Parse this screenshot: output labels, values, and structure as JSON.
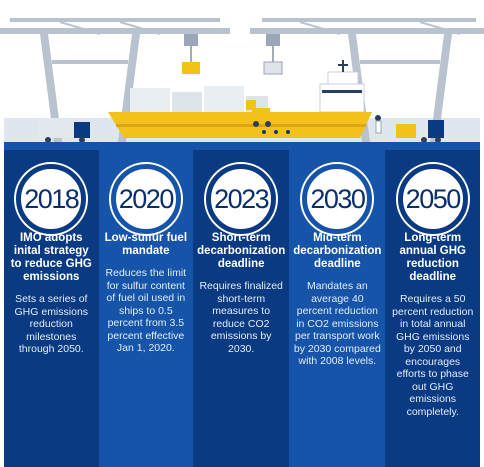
{
  "milestones": [
    {
      "year": "2018",
      "title": "IMO adopts inital strategy to reduce GHG emissions",
      "description": "Sets a series of GHG emissions reduction milestones through 2050."
    },
    {
      "year": "2020",
      "title": "Low-sulfur fuel mandate",
      "description": "Reduces the limit for sulfur content of fuel oil used in ships to 0.5 percent from 3.5 percent effective Jan 1, 2020."
    },
    {
      "year": "2023",
      "title": "Short-term decarbonization deadline",
      "description": "Requires finalized short-term measures to reduce CO2 emissions by 2030."
    },
    {
      "year": "2030",
      "title": "Mid-term decarbonization deadline",
      "description": "Mandates an average 40 percent reduction in CO2 emissions per transport work by 2030 compared with 2008 levels."
    },
    {
      "year": "2050",
      "title": "Long-term annual GHG reduction deadline",
      "description": "Requires a 50 percent reduction in total annual GHG emissions by 2050 and encourages efforts to phase out GHG emissions completely."
    }
  ],
  "colors": {
    "navy": "#0a3a82",
    "blue": "#1554a8",
    "ship_yellow": "#f2c21b",
    "crane_gray": "#b9c3cf",
    "sky": "#e6edf3"
  },
  "icons": [
    "crane-icon",
    "cargo-ship-icon",
    "truck-icon",
    "forklift-icon",
    "container-icon",
    "worker-icon"
  ]
}
